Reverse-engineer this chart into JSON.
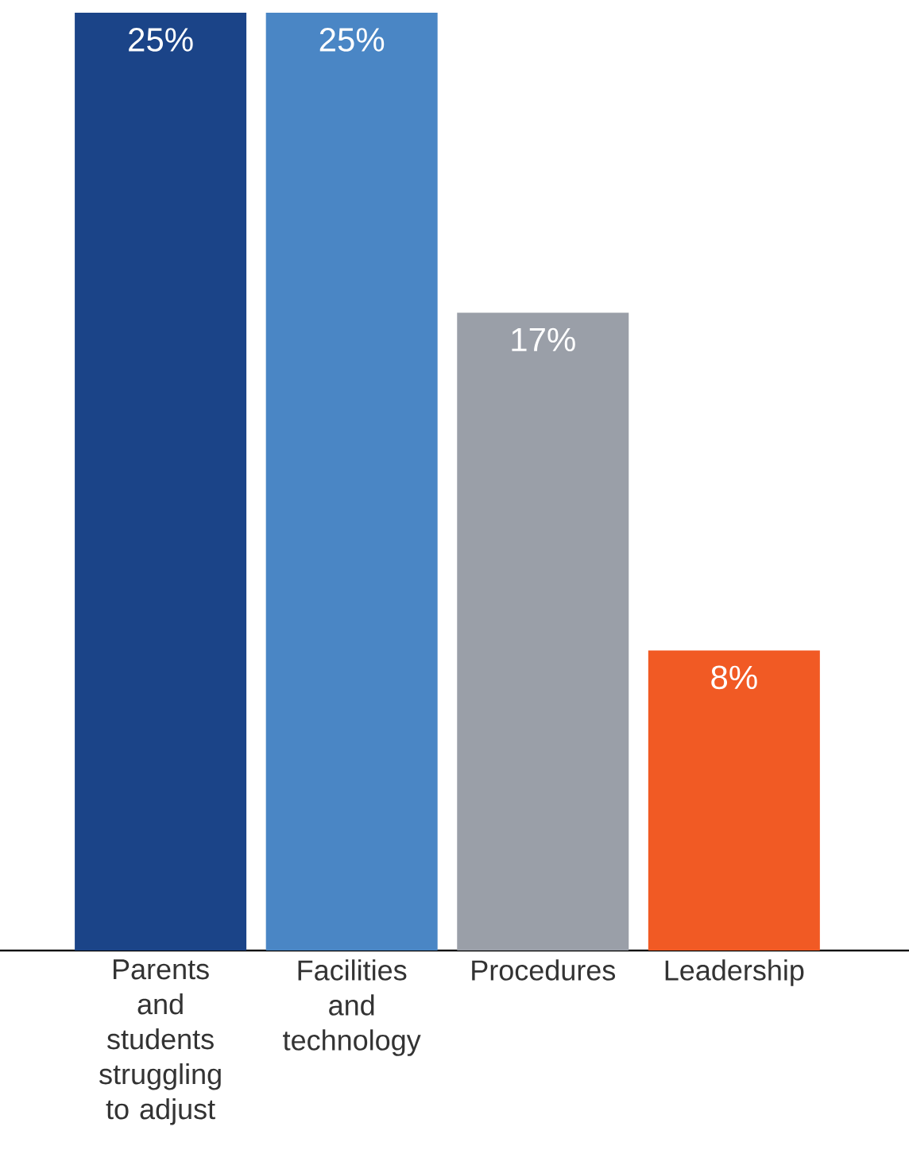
{
  "chart_data": {
    "type": "bar",
    "categories": [
      "Parents and students struggling to adjust",
      "Facilities and technology",
      "Procedures",
      "Leadership"
    ],
    "values": [
      25,
      25,
      17,
      8
    ],
    "colors": [
      "#1b4488",
      "#4a86c5",
      "#9a9fa8",
      "#f15a24"
    ],
    "value_labels": [
      "25%",
      "25%",
      "17%",
      "8%"
    ],
    "ylim": [
      0,
      25
    ],
    "tick_labels": "x",
    "grid": false
  }
}
